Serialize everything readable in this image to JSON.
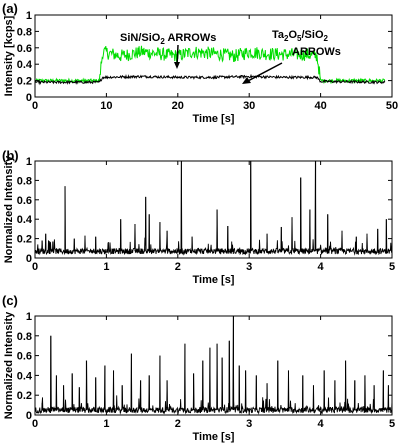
{
  "chart_data": [
    {
      "panel": "(a)",
      "type": "line",
      "xlabel": "Time [s]",
      "ylabel": "Intensity [kcps]",
      "xlim": [
        0,
        50
      ],
      "ylim": [
        0,
        1
      ],
      "xticks": [
        0,
        10,
        20,
        30,
        40,
        50
      ],
      "yticks": [
        0,
        0.2,
        0.4,
        0.6,
        0.8,
        1
      ],
      "ytick_labels": [
        "0",
        "0.2",
        "0.4",
        "0.6",
        "0.8",
        "1"
      ],
      "series": [
        {
          "color": "#00dd00",
          "x": [
            0,
            9,
            9.5,
            12,
            15,
            18,
            20,
            22,
            25,
            28,
            30,
            32,
            35,
            38,
            39.5,
            40,
            49
          ],
          "values": [
            0.2,
            0.2,
            0.55,
            0.5,
            0.55,
            0.52,
            0.5,
            0.55,
            0.53,
            0.5,
            0.55,
            0.53,
            0.52,
            0.52,
            0.5,
            0.2,
            0.2
          ]
        },
        {
          "color": "#000000",
          "x": [
            0,
            9,
            9.5,
            15,
            20,
            25,
            30,
            35,
            39.5,
            40,
            49
          ],
          "values": [
            0.18,
            0.18,
            0.24,
            0.25,
            0.24,
            0.24,
            0.25,
            0.24,
            0.24,
            0.19,
            0.18
          ]
        }
      ],
      "annotations": [
        {
          "text": "SiN/SiO",
          "sub": "2",
          "after": " ARROWs"
        },
        {
          "text": "Ta",
          "sub": "2",
          "mid": "O",
          "sub2": "5",
          "after": "/SiO",
          "sub3": "2",
          "line2": "ARROWs"
        }
      ]
    },
    {
      "panel": "(b)",
      "type": "line",
      "xlabel": "Time [s]",
      "ylabel": "Normalized Intensity",
      "xlim": [
        0,
        5
      ],
      "ylim": [
        0,
        1
      ],
      "xticks": [
        0,
        1,
        2,
        3,
        4,
        5
      ],
      "yticks": [
        0,
        0.2,
        0.4,
        0.6,
        0.8,
        1
      ],
      "ytick_labels": [
        "0",
        "0.2",
        "0.4",
        "0.6",
        "0.8",
        "1"
      ],
      "baseline": 0.07,
      "spikes": {
        "x": [
          0.1,
          0.15,
          0.25,
          0.42,
          0.55,
          0.7,
          0.85,
          1.05,
          1.2,
          1.4,
          1.55,
          1.6,
          1.75,
          1.85,
          2.05,
          2.2,
          2.55,
          2.7,
          3.02,
          3.25,
          3.45,
          3.6,
          3.72,
          3.85,
          3.93,
          4.1,
          4.3,
          4.5,
          4.65,
          4.8,
          4.92
        ],
        "values": [
          0.18,
          0.25,
          0.17,
          0.74,
          0.2,
          0.23,
          0.22,
          0.16,
          0.4,
          0.35,
          0.63,
          0.45,
          0.37,
          0.28,
          1.0,
          0.22,
          0.5,
          0.33,
          1.0,
          0.25,
          0.32,
          0.42,
          0.83,
          0.5,
          1.0,
          0.45,
          0.28,
          0.22,
          0.25,
          0.3,
          0.4
        ]
      }
    },
    {
      "panel": "(c)",
      "type": "line",
      "xlabel": "Time [s]",
      "ylabel": "Normalized Intensity",
      "xlim": [
        0,
        5
      ],
      "ylim": [
        0,
        1
      ],
      "xticks": [
        0,
        1,
        2,
        3,
        4,
        5
      ],
      "yticks": [
        0,
        0.2,
        0.4,
        0.6,
        0.8,
        1
      ],
      "ytick_labels": [
        "0",
        "0.2",
        "0.4",
        "0.6",
        "0.8",
        "1"
      ],
      "baseline": 0.05,
      "spikes": {
        "x": [
          0.1,
          0.22,
          0.3,
          0.4,
          0.52,
          0.62,
          0.72,
          0.85,
          0.98,
          1.1,
          1.22,
          1.35,
          1.48,
          1.6,
          1.75,
          1.85,
          2.1,
          2.22,
          2.35,
          2.45,
          2.55,
          2.62,
          2.72,
          2.78,
          2.86,
          2.95,
          3.1,
          3.25,
          3.4,
          3.55,
          3.75,
          3.9,
          4.05,
          4.2,
          4.35,
          4.48,
          4.62,
          4.75,
          4.88,
          4.95
        ],
        "values": [
          0.12,
          0.8,
          0.4,
          0.3,
          0.42,
          0.28,
          0.55,
          0.38,
          0.5,
          0.45,
          0.3,
          0.62,
          0.35,
          0.4,
          0.6,
          0.35,
          0.72,
          0.42,
          0.55,
          0.68,
          0.72,
          0.58,
          0.75,
          1.0,
          0.5,
          0.45,
          0.4,
          0.32,
          0.55,
          0.45,
          0.4,
          0.3,
          0.45,
          0.35,
          0.55,
          0.35,
          0.4,
          0.3,
          0.45,
          0.3
        ]
      }
    }
  ]
}
